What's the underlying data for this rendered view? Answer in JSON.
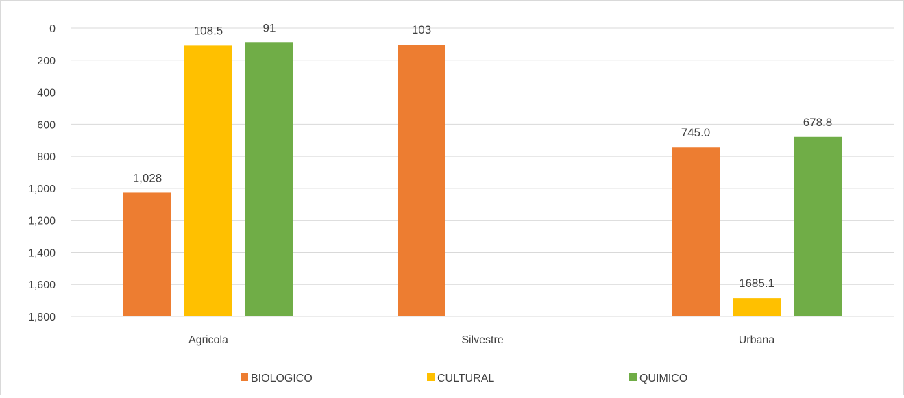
{
  "chart_data": {
    "type": "bar",
    "title": "",
    "xlabel": "",
    "ylabel": "",
    "y_inverted": true,
    "ylim": [
      0,
      1800
    ],
    "yticks": [
      0,
      200,
      400,
      600,
      800,
      1000,
      1200,
      1400,
      1600,
      1800
    ],
    "ytick_labels": [
      "0",
      "200",
      "400",
      "600",
      "800",
      "1,000",
      "1,200",
      "1,400",
      "1,600",
      "1,800"
    ],
    "grid": true,
    "legend_position": "bottom",
    "categories": [
      "Agricola",
      "Silvestre",
      "Urbana"
    ],
    "series": [
      {
        "name": "BIOLOGICO",
        "color": "#ED7D31",
        "values": [
          1028,
          103,
          745.0
        ],
        "labels": [
          "1,028",
          "103",
          "745.0"
        ]
      },
      {
        "name": "CULTURAL",
        "color": "#FFC000",
        "values": [
          108.5,
          null,
          1685.1
        ],
        "labels": [
          "108.5",
          "",
          "1685.1"
        ]
      },
      {
        "name": "QUIMICO",
        "color": "#70AD47",
        "values": [
          91,
          null,
          678.8
        ],
        "labels": [
          "91",
          "",
          "678.8"
        ]
      }
    ]
  }
}
